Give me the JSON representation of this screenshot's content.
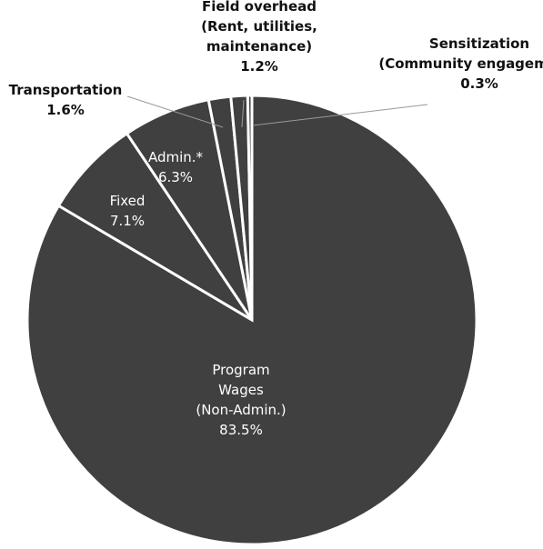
{
  "chart_data": {
    "type": "pie",
    "categories": [
      "Program Wages (Non-Admin.)",
      "Fixed",
      "Admin.*",
      "Transportation",
      "Field overhead (Rent, utilities, maintenance)",
      "Sensitization (Community engagement)"
    ],
    "values": [
      83.5,
      7.1,
      6.3,
      1.6,
      1.2,
      0.3
    ],
    "value_labels": [
      "83.5%",
      "7.1%",
      "6.3%",
      "1.6%",
      "1.2%",
      "0.3%"
    ],
    "color": "#404040"
  }
}
